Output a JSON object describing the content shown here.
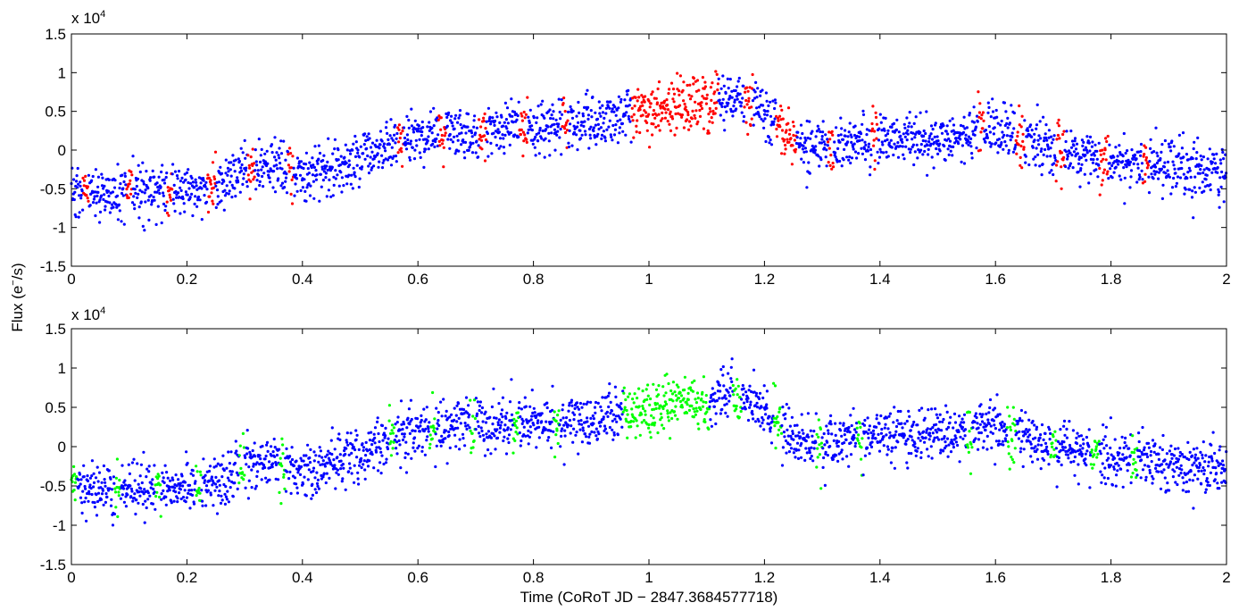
{
  "figure": {
    "ylabel": "Flux (e",
    "ylabel_sup": "−",
    "ylabel_tail": "/s)",
    "xlabel": "Time (CoRoT JD − 2847.3684577718)"
  },
  "chart_data": [
    {
      "type": "scatter",
      "title": "",
      "xlabel": "",
      "ylabel": "Flux (e−/s)",
      "xlim": [
        0,
        2
      ],
      "ylim": [
        -15000,
        15000
      ],
      "y_multiplier_base": "x 10",
      "y_multiplier_exp": "4",
      "xticks": [
        "0",
        "0.2",
        "0.4",
        "0.6",
        "0.8",
        "1",
        "1.2",
        "1.4",
        "1.6",
        "1.8",
        "2"
      ],
      "yticks": [
        "-1.5",
        "-1",
        "-0.5",
        "0",
        "0.5",
        "1",
        "1.5"
      ],
      "ytick_values": [
        -15000,
        -10000,
        -5000,
        0,
        5000,
        10000,
        15000
      ],
      "trend": {
        "x": [
          0,
          0.1,
          0.2,
          0.25,
          0.3,
          0.35,
          0.4,
          0.5,
          0.6,
          0.7,
          0.8,
          0.9,
          1.0,
          1.1,
          1.15,
          1.2,
          1.25,
          1.3,
          1.4,
          1.5,
          1.6,
          1.7,
          1.8,
          1.9,
          2.0
        ],
        "y": [
          -5500,
          -5500,
          -5200,
          -5000,
          -2500,
          -2000,
          -3500,
          -1000,
          2000,
          2500,
          3000,
          3500,
          5000,
          6000,
          6500,
          5000,
          500,
          800,
          1500,
          1500,
          2500,
          0,
          -1500,
          -2000,
          -3000
        ]
      },
      "scatter_sd": 1700,
      "series": [
        {
          "name": "data",
          "color": "#0000ff"
        },
        {
          "name": "flagged",
          "color": "#ff0000",
          "windows": [
            [
              0.02,
              0.03
            ],
            [
              0.095,
              0.105
            ],
            [
              0.165,
              0.175
            ],
            [
              0.235,
              0.25
            ],
            [
              0.305,
              0.318
            ],
            [
              0.375,
              0.385
            ],
            [
              0.565,
              0.575
            ],
            [
              0.635,
              0.648
            ],
            [
              0.705,
              0.718
            ],
            [
              0.775,
              0.79
            ],
            [
              0.85,
              0.86
            ],
            [
              0.97,
              1.12
            ],
            [
              1.165,
              1.18
            ],
            [
              1.22,
              1.255
            ],
            [
              1.31,
              1.32
            ],
            [
              1.385,
              1.395
            ],
            [
              1.57,
              1.58
            ],
            [
              1.635,
              1.65
            ],
            [
              1.705,
              1.72
            ],
            [
              1.78,
              1.795
            ],
            [
              1.855,
              1.865
            ]
          ]
        }
      ]
    },
    {
      "type": "scatter",
      "title": "",
      "xlabel": "Time (CoRoT JD − 2847.3684577718)",
      "ylabel": "Flux (e−/s)",
      "xlim": [
        0,
        2
      ],
      "ylim": [
        -15000,
        15000
      ],
      "y_multiplier_base": "x 10",
      "y_multiplier_exp": "4",
      "xticks": [
        "0",
        "0.2",
        "0.4",
        "0.6",
        "0.8",
        "1",
        "1.2",
        "1.4",
        "1.6",
        "1.8",
        "2"
      ],
      "yticks": [
        "-1.5",
        "-1",
        "-0.5",
        "0",
        "0.5",
        "1",
        "1.5"
      ],
      "ytick_values": [
        -15000,
        -10000,
        -5000,
        0,
        5000,
        10000,
        15000
      ],
      "trend": {
        "x": [
          0,
          0.1,
          0.2,
          0.25,
          0.3,
          0.35,
          0.4,
          0.5,
          0.6,
          0.7,
          0.8,
          0.9,
          1.0,
          1.1,
          1.15,
          1.2,
          1.25,
          1.3,
          1.4,
          1.5,
          1.6,
          1.7,
          1.8,
          1.9,
          2.0
        ],
        "y": [
          -5500,
          -5500,
          -5200,
          -5000,
          -2500,
          -2000,
          -3500,
          -1000,
          2000,
          2500,
          3000,
          3500,
          5000,
          6000,
          6500,
          5000,
          500,
          800,
          1500,
          1500,
          2500,
          0,
          -1500,
          -2000,
          -3000
        ]
      },
      "scatter_sd": 1700,
      "series": [
        {
          "name": "data",
          "color": "#0000ff"
        },
        {
          "name": "flagged",
          "color": "#00ff00",
          "windows": [
            [
              0.0,
              0.01
            ],
            [
              0.075,
              0.085
            ],
            [
              0.145,
              0.155
            ],
            [
              0.215,
              0.225
            ],
            [
              0.29,
              0.3
            ],
            [
              0.36,
              0.37
            ],
            [
              0.55,
              0.56
            ],
            [
              0.62,
              0.63
            ],
            [
              0.69,
              0.7
            ],
            [
              0.765,
              0.775
            ],
            [
              0.835,
              0.845
            ],
            [
              0.955,
              1.105
            ],
            [
              1.145,
              1.16
            ],
            [
              1.215,
              1.23
            ],
            [
              1.29,
              1.3
            ],
            [
              1.36,
              1.37
            ],
            [
              1.55,
              1.56
            ],
            [
              1.62,
              1.635
            ],
            [
              1.695,
              1.705
            ],
            [
              1.765,
              1.78
            ],
            [
              1.835,
              1.845
            ]
          ]
        }
      ]
    }
  ]
}
